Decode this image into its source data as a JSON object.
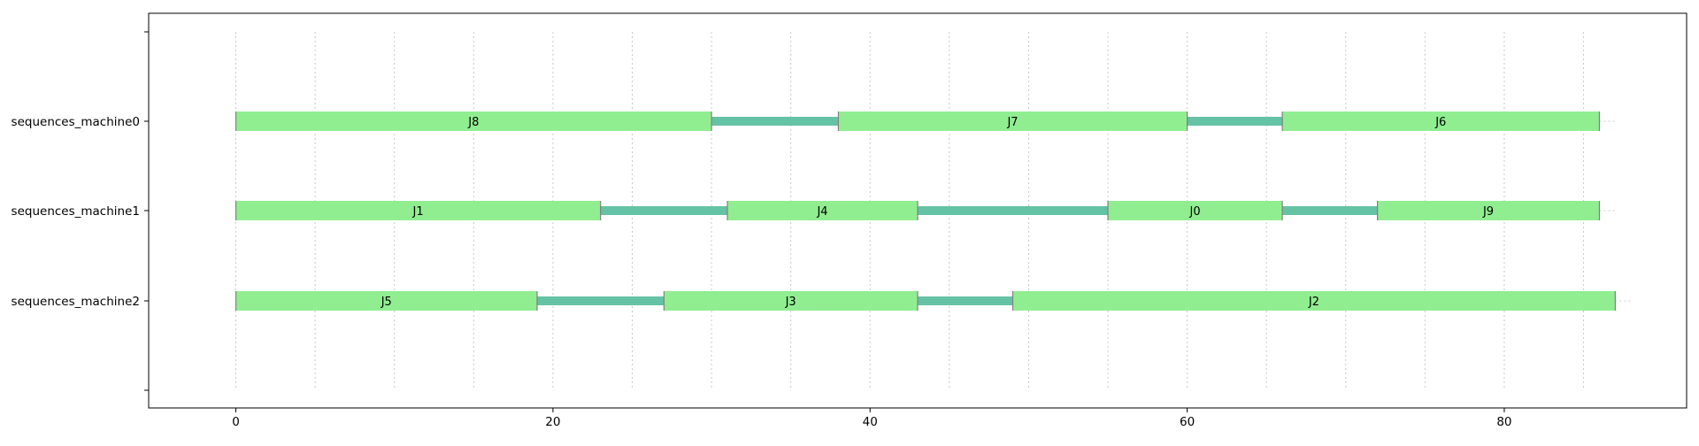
{
  "chart_data": {
    "type": "gantt",
    "title": "",
    "xlabel": "",
    "ylabel": "",
    "xlim": [
      -5.5,
      91.5
    ],
    "xticks": [
      0,
      20,
      40,
      60,
      80
    ],
    "xtick_labels": [
      "0",
      "20",
      "40",
      "60",
      "80"
    ],
    "minor_grid_x": [
      0,
      5,
      10,
      15,
      20,
      25,
      30,
      35,
      40,
      45,
      50,
      55,
      60,
      65,
      70,
      75,
      80,
      85
    ],
    "grid": true,
    "rows": [
      {
        "label": "sequences_machine0",
        "end": 86,
        "tasks": [
          {
            "name": "J8",
            "start": 0,
            "end": 30
          },
          {
            "name": "J7",
            "start": 38,
            "end": 60
          },
          {
            "name": "J6",
            "start": 66,
            "end": 86
          }
        ],
        "gaps": [
          {
            "start": 30,
            "end": 38
          },
          {
            "start": 60,
            "end": 66
          }
        ]
      },
      {
        "label": "sequences_machine1",
        "end": 86,
        "tasks": [
          {
            "name": "J1",
            "start": 0,
            "end": 23
          },
          {
            "name": "J4",
            "start": 31,
            "end": 43
          },
          {
            "name": "J0",
            "start": 55,
            "end": 66
          },
          {
            "name": "J9",
            "start": 72,
            "end": 86
          }
        ],
        "gaps": [
          {
            "start": 23,
            "end": 31
          },
          {
            "start": 43,
            "end": 55
          },
          {
            "start": 66,
            "end": 72
          }
        ]
      },
      {
        "label": "sequences_machine2",
        "end": 87,
        "tasks": [
          {
            "name": "J5",
            "start": 0,
            "end": 19
          },
          {
            "name": "J3",
            "start": 27,
            "end": 43
          },
          {
            "name": "J2",
            "start": 49,
            "end": 87
          }
        ],
        "gaps": [
          {
            "start": 19,
            "end": 27
          },
          {
            "start": 43,
            "end": 49
          }
        ]
      }
    ],
    "colors": {
      "task_fill": "#90ee90",
      "gap_fill": "#66c2a5",
      "task_edge": "#808080",
      "grid": "#c8c8c8",
      "axis": "#000000"
    }
  }
}
